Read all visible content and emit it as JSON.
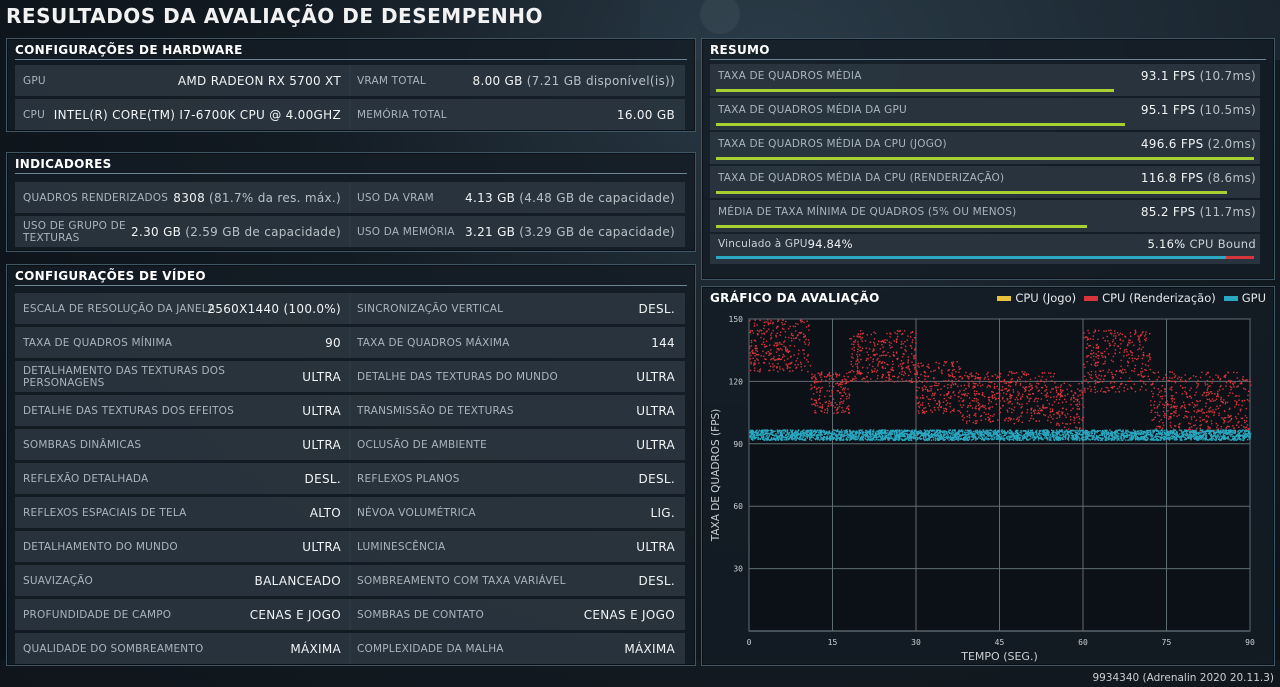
{
  "title": "RESULTADOS DA AVALIAÇÃO DE DESEMPENHO",
  "hardware": {
    "title": "CONFIGURAÇÕES DE HARDWARE",
    "gpu_label": "GPU",
    "gpu_value": "AMD RADEON RX 5700 XT",
    "vram_label": "VRAM TOTAL",
    "vram_value": "8.00 GB",
    "vram_sub": "(7.21 GB disponível(is))",
    "cpu_label": "CPU",
    "cpu_value": "INTEL(R) CORE(TM) I7-6700K CPU @ 4.00GHZ",
    "mem_label": "MEMÓRIA TOTAL",
    "mem_value": "16.00 GB"
  },
  "indicators": {
    "title": "INDICADORES",
    "frames_label": "QUADROS RENDERIZADOS",
    "frames_value": "8308",
    "frames_sub": "(81.7% da res. máx.)",
    "vram_use_label": "USO DA VRAM",
    "vram_use_value": "4.13 GB",
    "vram_use_sub": "(4.48 GB de capacidade)",
    "tex_label": "USO DE GRUPO DE TEXTURAS",
    "tex_value": "2.30 GB",
    "tex_sub": "(2.59 GB de capacidade)",
    "mem_use_label": "USO DA MEMÓRIA",
    "mem_use_value": "3.21 GB",
    "mem_use_sub": "(3.29 GB de capacidade)"
  },
  "video": {
    "title": "CONFIGURAÇÕES DE VÍDEO",
    "rows": [
      {
        "l1": "ESCALA DE RESOLUÇÃO DA JANELA",
        "v1": "2560X1440 (100.0%)",
        "l2": "SINCRONIZAÇÃO VERTICAL",
        "v2": "DESL."
      },
      {
        "l1": "TAXA DE QUADROS MÍNIMA",
        "v1": "90",
        "l2": "TAXA DE QUADROS MÁXIMA",
        "v2": "144"
      },
      {
        "l1": "DETALHAMENTO DAS TEXTURAS DOS PERSONAGENS",
        "v1": "ULTRA",
        "l2": "DETALHE DAS TEXTURAS DO MUNDO",
        "v2": "ULTRA"
      },
      {
        "l1": "DETALHE DAS TEXTURAS DOS EFEITOS",
        "v1": "ULTRA",
        "l2": "TRANSMISSÃO DE TEXTURAS",
        "v2": "ULTRA"
      },
      {
        "l1": "SOMBRAS DINÂMICAS",
        "v1": "ULTRA",
        "l2": "OCLUSÃO DE AMBIENTE",
        "v2": "ULTRA"
      },
      {
        "l1": "REFLEXÃO DETALHADA",
        "v1": "DESL.",
        "l2": "REFLEXOS PLANOS",
        "v2": "DESL."
      },
      {
        "l1": "REFLEXOS ESPACIAIS DE TELA",
        "v1": "ALTO",
        "l2": "NÉVOA VOLUMÉTRICA",
        "v2": "LIG."
      },
      {
        "l1": "DETALHAMENTO DO MUNDO",
        "v1": "ULTRA",
        "l2": "LUMINESCÊNCIA",
        "v2": "ULTRA"
      },
      {
        "l1": "SUAVIZAÇÃO",
        "v1": "BALANCEADO",
        "l2": "SOMBREAMENTO COM TAXA VARIÁVEL",
        "v2": "DESL."
      },
      {
        "l1": "PROFUNDIDADE DE CAMPO",
        "v1": "CENAS E JOGO",
        "l2": "SOMBRAS DE CONTATO",
        "v2": "CENAS E JOGO"
      },
      {
        "l1": "QUALIDADE DO SOMBREAMENTO",
        "v1": "MÁXIMA",
        "l2": "COMPLEXIDADE DA MALHA",
        "v2": "MÁXIMA"
      }
    ]
  },
  "summary": {
    "title": "RESUMO",
    "rows": [
      {
        "label": "TAXA DE QUADROS MÉDIA",
        "value": "93.1 FPS",
        "sub": "(10.7ms)",
        "fraction": 0.74
      },
      {
        "label": "TAXA DE QUADROS MÉDIA DA GPU",
        "value": "95.1 FPS",
        "sub": "(10.5ms)",
        "fraction": 0.76
      },
      {
        "label": "TAXA DE QUADROS MÉDIA DA CPU (JOGO)",
        "value": "496.6 FPS",
        "sub": "(2.0ms)",
        "fraction": 1.0
      },
      {
        "label": "TAXA DE QUADROS MÉDIA DA CPU (RENDERIZAÇÃO)",
        "value": "116.8 FPS",
        "sub": "(8.6ms)",
        "fraction": 0.95
      },
      {
        "label": "MÉDIA DE TAXA MÍNIMA DE QUADROS (5% OU MENOS)",
        "value": "85.2 FPS",
        "sub": "(11.7ms)",
        "fraction": 0.69
      }
    ],
    "bound_gpu_label": "Vinculado à GPU",
    "bound_gpu_value": "94.84%",
    "bound_cpu_value": "5.16%",
    "bound_cpu_label": "CPU Bound",
    "gpu_fraction": 0.9484,
    "bar_color": "#a7d130",
    "gpu_color": "#2aa8c2",
    "cpu_color": "#d8343c"
  },
  "chart_panel": {
    "title": "GRÁFICO DA AVALIAÇÃO",
    "legend": [
      "CPU (Jogo)",
      "CPU (Renderização)",
      "GPU"
    ],
    "legend_colors": [
      "#e8c33a",
      "#d8343c",
      "#2aa8c2"
    ]
  },
  "chart_data": {
    "type": "scatter",
    "title": "GRÁFICO DA AVALIAÇÃO",
    "xlabel": "TEMPO (SEG.)",
    "ylabel": "TAXA DE QUADROS (FPS)",
    "xlim": [
      0,
      90
    ],
    "ylim": [
      0,
      150
    ],
    "xticks": [
      0,
      15,
      30,
      45,
      60,
      75,
      90
    ],
    "yticks": [
      30,
      60,
      90,
      120,
      150
    ],
    "grid": true,
    "legend_position": "top-right",
    "series": [
      {
        "name": "CPU (Jogo)",
        "color": "#e8c33a",
        "note_values": "acima do limite do eixo (~496 FPS)",
        "values": []
      },
      {
        "name": "CPU (Renderização)",
        "color": "#d8343c",
        "segments": [
          [
            0,
            11,
            125,
            150
          ],
          [
            11,
            18,
            105,
            125
          ],
          [
            18,
            30,
            120,
            145
          ],
          [
            30,
            38,
            105,
            130
          ],
          [
            38,
            55,
            100,
            125
          ],
          [
            55,
            60,
            95,
            120
          ],
          [
            60,
            72,
            115,
            145
          ],
          [
            72,
            90,
            95,
            125
          ]
        ]
      },
      {
        "name": "GPU",
        "color": "#2aa8c2",
        "segments": [
          [
            0,
            90,
            92,
            97
          ]
        ]
      }
    ]
  },
  "footer": "9934340 (Adrenalin 2020 20.11.3)"
}
